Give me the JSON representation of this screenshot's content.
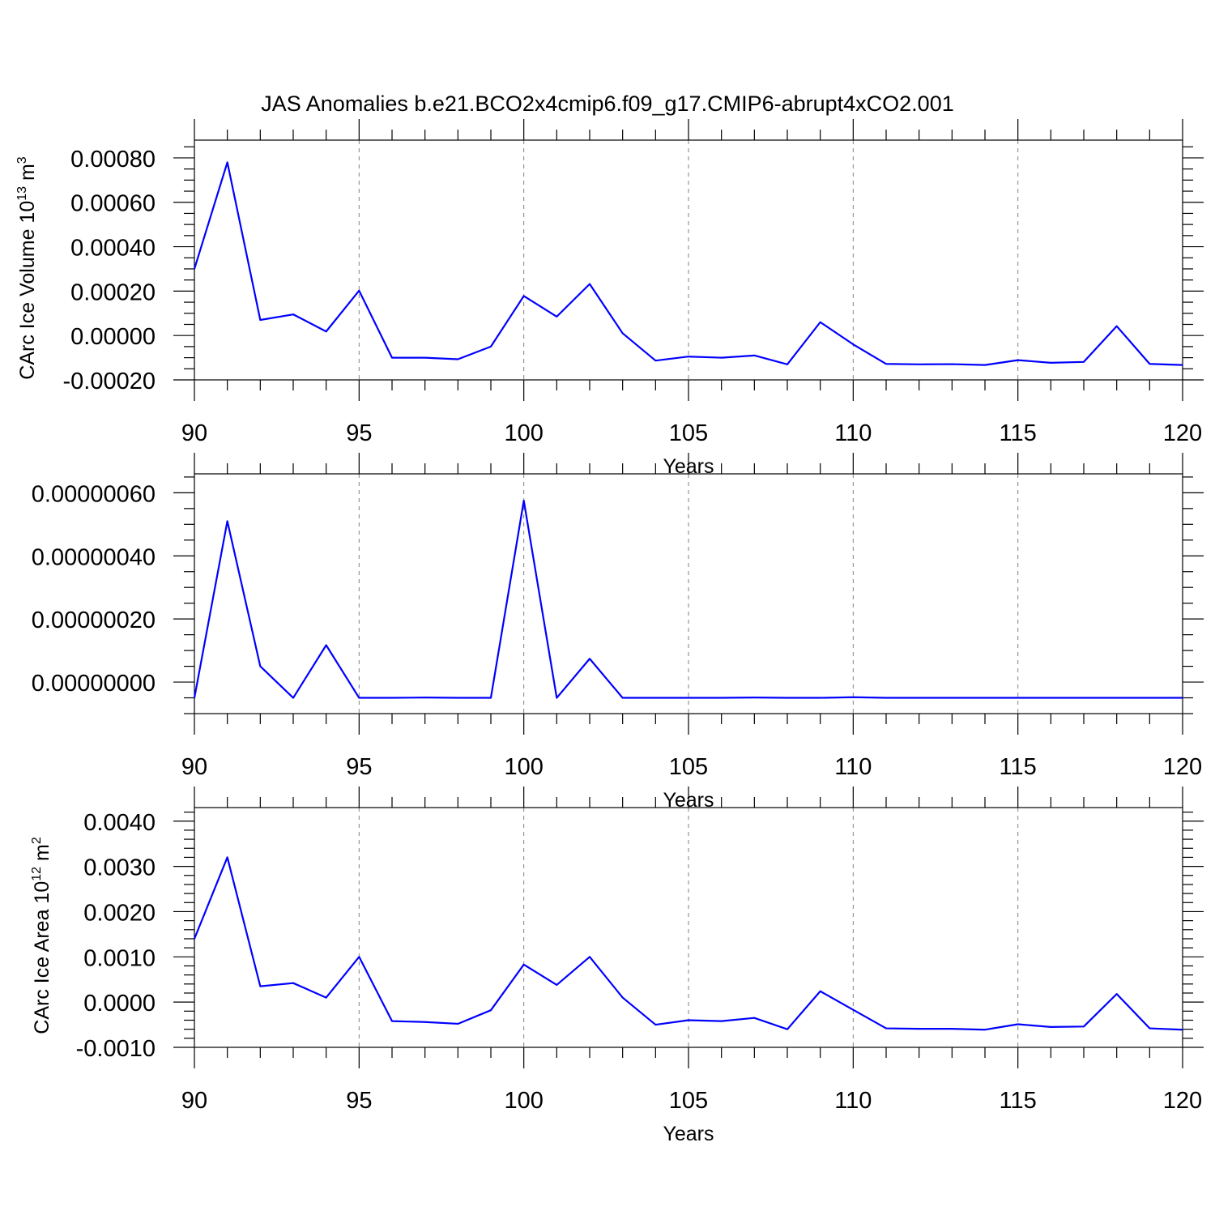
{
  "title": "JAS Anomalies b.e21.BCO2x4cmip6.f09_g17.CMIP6-abrupt4xCO2.001",
  "line_color": "#0000ff",
  "chart_data": [
    {
      "type": "line",
      "xlabel": "Years",
      "ylabel": "CArc Ice Volume 10",
      "ylabel_exp": "13",
      "ylabel_unit": " m",
      "ylabel_unit_exp": "3",
      "xlim": [
        90,
        120
      ],
      "ylim": [
        -0.0002,
        0.00088
      ],
      "x_ticks": [
        90,
        95,
        100,
        105,
        110,
        115,
        120
      ],
      "y_ticks": [
        -0.0002,
        0,
        0.0002,
        0.0004,
        0.0006,
        0.0008
      ],
      "y_tick_labels": [
        "-0.00020",
        "0.00000",
        "0.00020",
        "0.00040",
        "0.00060",
        "0.00080"
      ],
      "y_minor_step": 5e-05,
      "grid": "vertical dashed at major x ticks",
      "x": [
        90,
        91,
        92,
        93,
        94,
        95,
        96,
        97,
        98,
        99,
        100,
        101,
        102,
        103,
        104,
        105,
        106,
        107,
        108,
        109,
        110,
        111,
        112,
        113,
        114,
        115,
        116,
        117,
        118,
        119,
        120
      ],
      "values": [
        0.0003,
        0.00078,
        7e-05,
        9.5e-05,
        1.8e-05,
        0.000202,
        -0.0001,
        -0.0001,
        -0.000107,
        -5e-05,
        0.000178,
        8.5e-05,
        0.000232,
        1e-05,
        -0.000113,
        -9.5e-05,
        -0.0001,
        -9e-05,
        -0.00013,
        6e-05,
        -4e-05,
        -0.000128,
        -0.00013,
        -0.000129,
        -0.000133,
        -0.000111,
        -0.000123,
        -0.000119,
        4.2e-05,
        -0.000128,
        -0.000133
      ]
    },
    {
      "type": "line",
      "xlabel": "Years",
      "ylabel": "",
      "xlim": [
        90,
        120
      ],
      "ylim": [
        -1e-07,
        6.6e-07
      ],
      "x_ticks": [
        90,
        95,
        100,
        105,
        110,
        115,
        120
      ],
      "y_ticks": [
        0,
        2e-07,
        4e-07,
        6e-07
      ],
      "y_tick_labels": [
        "0.00000000",
        "0.00000020",
        "0.00000040",
        "0.00000060"
      ],
      "y_minor_step": 5e-08,
      "grid": "vertical dashed at major x ticks",
      "x": [
        90,
        91,
        92,
        93,
        94,
        95,
        96,
        97,
        98,
        99,
        100,
        101,
        102,
        103,
        104,
        105,
        106,
        107,
        108,
        109,
        110,
        111,
        112,
        113,
        114,
        115,
        116,
        117,
        118,
        119,
        120
      ],
      "values": [
        -5e-08,
        5.1e-07,
        5e-08,
        -5e-08,
        1.17e-07,
        -5e-08,
        -5e-08,
        -4.9e-08,
        -5e-08,
        -5e-08,
        5.75e-07,
        -5e-08,
        7.4e-08,
        -5e-08,
        -5e-08,
        -5e-08,
        -5e-08,
        -4.9e-08,
        -5e-08,
        -5e-08,
        -4.8e-08,
        -5e-08,
        -5e-08,
        -5e-08,
        -5e-08,
        -5e-08,
        -5e-08,
        -5e-08,
        -5e-08,
        -5e-08,
        -5e-08
      ]
    },
    {
      "type": "line",
      "xlabel": "Years",
      "ylabel": "CArc Ice Area 10",
      "ylabel_exp": "12",
      "ylabel_unit": " m",
      "ylabel_unit_exp": "2",
      "xlim": [
        90,
        120
      ],
      "ylim": [
        -0.001,
        0.0043
      ],
      "x_ticks": [
        90,
        95,
        100,
        105,
        110,
        115,
        120
      ],
      "y_ticks": [
        -0.001,
        0,
        0.001,
        0.002,
        0.003,
        0.004
      ],
      "y_tick_labels": [
        "-0.0010",
        "0.0000",
        "0.0010",
        "0.0020",
        "0.0030",
        "0.0040"
      ],
      "y_minor_step": 0.0002,
      "grid": "vertical dashed at major x ticks",
      "x": [
        90,
        91,
        92,
        93,
        94,
        95,
        96,
        97,
        98,
        99,
        100,
        101,
        102,
        103,
        104,
        105,
        106,
        107,
        108,
        109,
        110,
        111,
        112,
        113,
        114,
        115,
        116,
        117,
        118,
        119,
        120
      ],
      "values": [
        0.0014,
        0.0032,
        0.00035,
        0.00042,
        0.0001,
        0.001,
        -0.00042,
        -0.00044,
        -0.00048,
        -0.00018,
        0.00083,
        0.00038,
        0.001,
        0.0001,
        -0.0005,
        -0.0004,
        -0.00042,
        -0.00035,
        -0.0006,
        0.00024,
        -0.00017,
        -0.00058,
        -0.00059,
        -0.00059,
        -0.00061,
        -0.00049,
        -0.00055,
        -0.00054,
        0.00018,
        -0.00058,
        -0.00061
      ]
    }
  ]
}
